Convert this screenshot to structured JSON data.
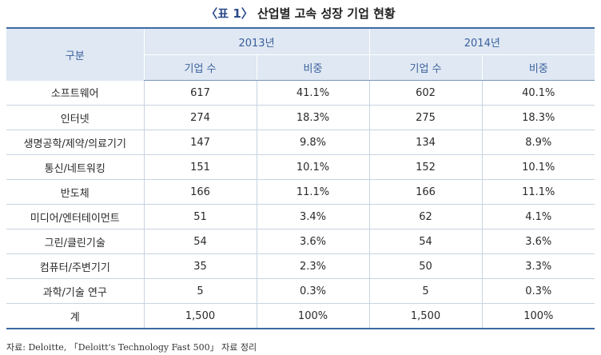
{
  "title": {
    "label": "〈표 1〉",
    "text": "산업별 고속 성장 기업 현황"
  },
  "header": {
    "category": "구분",
    "years": [
      "2013년",
      "2014년"
    ],
    "sub": [
      "기업 수",
      "비중",
      "기업 수",
      "비중"
    ]
  },
  "rows": [
    {
      "cat": "소프트웨어",
      "c2013": "617",
      "s2013": "41.1%",
      "c2014": "602",
      "s2014": "40.1%"
    },
    {
      "cat": "인터넷",
      "c2013": "274",
      "s2013": "18.3%",
      "c2014": "275",
      "s2014": "18.3%"
    },
    {
      "cat": "생명공학/제약/의료기기",
      "c2013": "147",
      "s2013": "9.8%",
      "c2014": "134",
      "s2014": "8.9%"
    },
    {
      "cat": "통신/네트워킹",
      "c2013": "151",
      "s2013": "10.1%",
      "c2014": "152",
      "s2014": "10.1%"
    },
    {
      "cat": "반도체",
      "c2013": "166",
      "s2013": "11.1%",
      "c2014": "166",
      "s2014": "11.1%"
    },
    {
      "cat": "미디어/엔터테이먼트",
      "c2013": "51",
      "s2013": "3.4%",
      "c2014": "62",
      "s2014": "4.1%"
    },
    {
      "cat": "그린/클린기술",
      "c2013": "54",
      "s2013": "3.6%",
      "c2014": "54",
      "s2014": "3.6%"
    },
    {
      "cat": "컴퓨터/주변기기",
      "c2013": "35",
      "s2013": "2.3%",
      "c2014": "50",
      "s2014": "3.3%"
    },
    {
      "cat": "과학/기술 연구",
      "c2013": "5",
      "s2013": "0.3%",
      "c2014": "5",
      "s2014": "0.3%"
    },
    {
      "cat": "계",
      "c2013": "1,500",
      "s2013": "100%",
      "c2014": "1,500",
      "s2014": "100%"
    }
  ],
  "source": "자료: Deloitte, 「Deloitt's Technology Fast 500」 자료 정리"
}
